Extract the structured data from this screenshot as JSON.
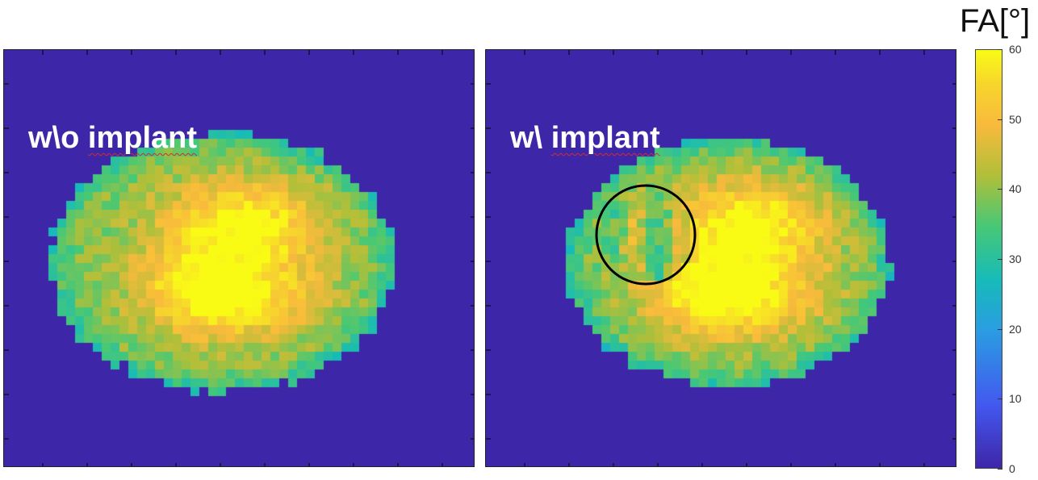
{
  "chart_data": {
    "type": "heatmap",
    "panels": [
      {
        "label_prefix": "w\\o ",
        "label_word": "implant",
        "highlight_circle": false
      },
      {
        "label_prefix": "w\\ ",
        "label_word": "implant",
        "highlight_circle": true
      }
    ],
    "colorbar": {
      "title": "FA[°]",
      "ticks": [
        "0",
        "10",
        "20",
        "30",
        "40",
        "50",
        "60"
      ],
      "range": [
        0,
        60
      ],
      "colormap": "parula"
    },
    "background_value": 0
  }
}
